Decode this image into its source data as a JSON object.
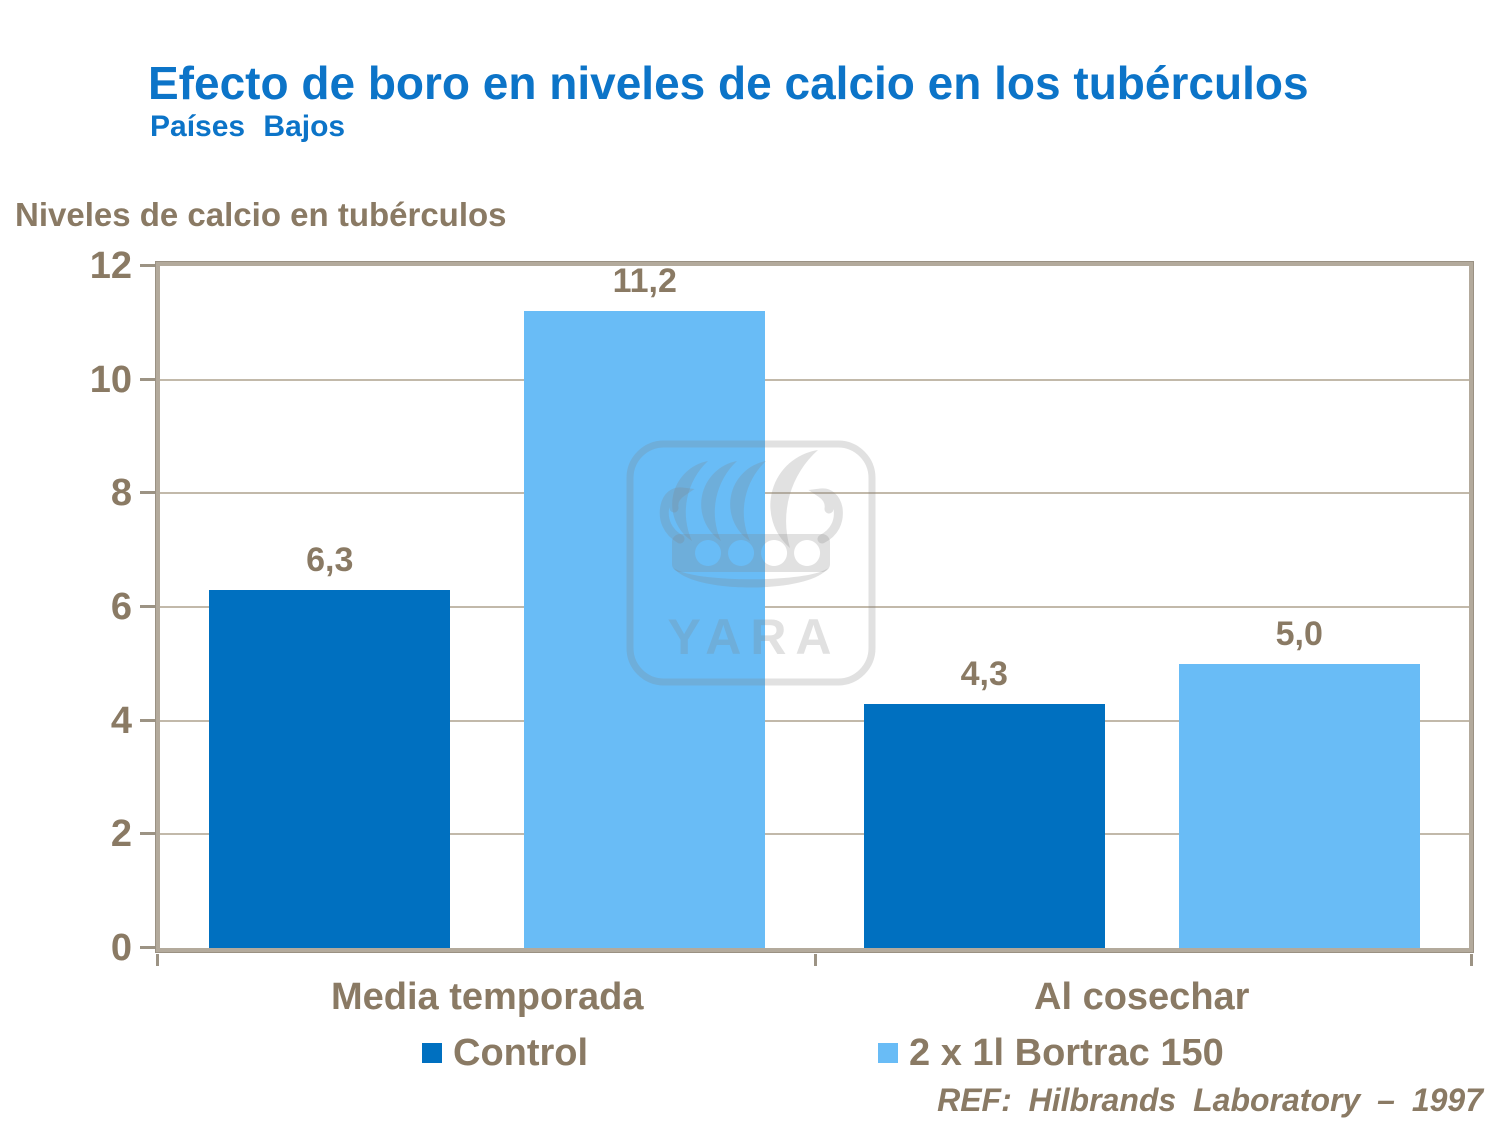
{
  "slide": {
    "title": "Efecto de boro en niveles de calcio en los tubérculos",
    "subtitle": "Países Bajos",
    "axis_title": "Niveles de calcio en tubérculos",
    "reference": "REF: Hilbrands Laboratory – 1997",
    "watermark_text": "YARA"
  },
  "colors": {
    "title_blue": "#0c74c8",
    "text_brown": "#8a7a64",
    "grid_line": "#c2b9aa",
    "plot_border": "#b3aa9c",
    "tick_mark": "#9c9384",
    "series_control": "#0070c0",
    "series_bortrac": "#69bcf6",
    "watermark_gray": "#808080"
  },
  "chart_data": {
    "type": "bar",
    "title": "Efecto de boro en niveles de calcio en los tubérculos",
    "ylabel": "Niveles de calcio en tubérculos",
    "categories": [
      "Media temporada",
      "Al cosechar"
    ],
    "series": [
      {
        "name": "Control",
        "color_key": "series_control",
        "values": [
          6.3,
          4.3
        ],
        "value_labels": [
          "6,3",
          "4,3"
        ]
      },
      {
        "name": "2 x 1l Bortrac 150",
        "color_key": "series_bortrac",
        "values": [
          11.2,
          5.0
        ],
        "value_labels": [
          "11,2",
          "5,0"
        ]
      }
    ],
    "ylim": [
      0,
      12
    ],
    "yticks": [
      0,
      2,
      4,
      6,
      8,
      10,
      12
    ],
    "grid": true,
    "legend_position": "bottom"
  }
}
